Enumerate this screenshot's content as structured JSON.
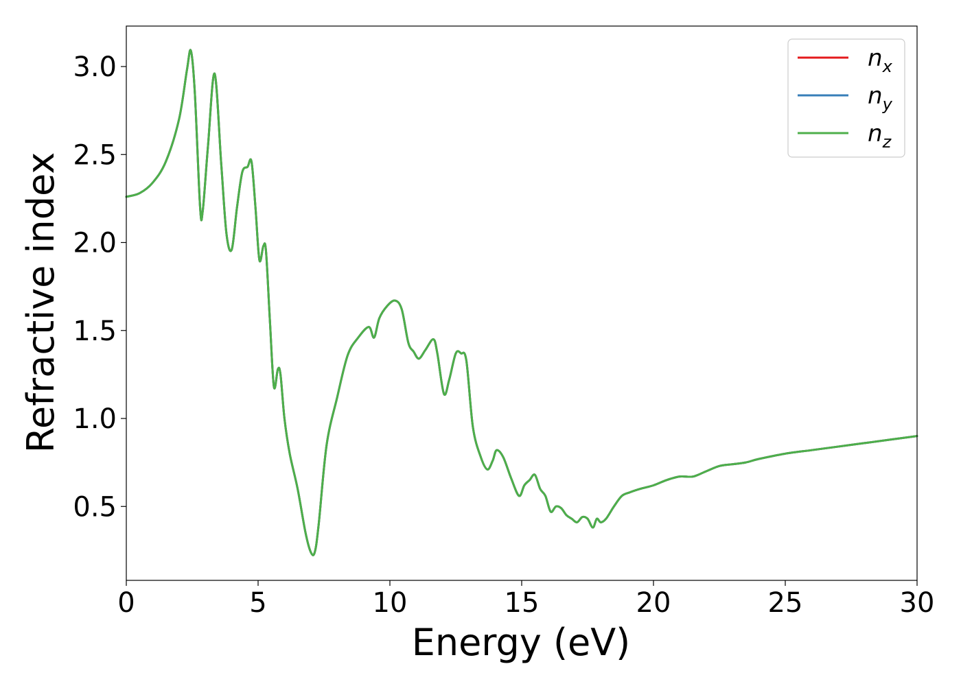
{
  "chart_data": {
    "type": "line",
    "xlabel": "Energy (eV)",
    "ylabel": "Refractive index",
    "xlim": [
      0,
      30
    ],
    "ylim": [
      0.08,
      3.23
    ],
    "x_ticks": [
      0,
      5,
      10,
      15,
      20,
      25,
      30
    ],
    "x_tick_labels": [
      "0",
      "5",
      "10",
      "15",
      "20",
      "25",
      "30"
    ],
    "y_ticks": [
      0.5,
      1.0,
      1.5,
      2.0,
      2.5,
      3.0
    ],
    "y_tick_labels": [
      "0.5",
      "1.0",
      "1.5",
      "2.0",
      "2.5",
      "3.0"
    ],
    "grid": false,
    "legend_position": "top-right",
    "x": [
      0,
      0.5,
      1.0,
      1.5,
      2.0,
      2.3,
      2.45,
      2.6,
      2.8,
      2.9,
      3.1,
      3.35,
      3.6,
      3.8,
      4.0,
      4.2,
      4.4,
      4.6,
      4.75,
      4.9,
      5.05,
      5.2,
      5.3,
      5.45,
      5.6,
      5.75,
      5.85,
      6.0,
      6.2,
      6.5,
      6.8,
      7.0,
      7.15,
      7.3,
      7.6,
      8.0,
      8.4,
      8.8,
      9.2,
      9.4,
      9.6,
      9.9,
      10.2,
      10.45,
      10.7,
      10.9,
      11.1,
      11.35,
      11.65,
      11.8,
      12.05,
      12.25,
      12.5,
      12.7,
      12.9,
      13.15,
      13.45,
      13.7,
      13.9,
      14.05,
      14.3,
      14.6,
      14.9,
      15.1,
      15.3,
      15.5,
      15.7,
      15.9,
      16.1,
      16.3,
      16.5,
      16.7,
      16.9,
      17.1,
      17.3,
      17.5,
      17.7,
      17.85,
      18.0,
      18.2,
      18.5,
      18.8,
      19.1,
      19.5,
      20.0,
      20.5,
      21.0,
      21.5,
      22.0,
      22.5,
      23.0,
      23.5,
      24.0,
      25.0,
      26.0,
      27.0,
      28.0,
      29.0,
      30.0
    ],
    "series": [
      {
        "name": "n_x",
        "color": "#e41a1c",
        "values": [
          2.26,
          2.28,
          2.34,
          2.46,
          2.7,
          2.98,
          3.09,
          2.85,
          2.2,
          2.18,
          2.55,
          2.96,
          2.45,
          2.05,
          1.96,
          2.2,
          2.4,
          2.43,
          2.46,
          2.2,
          1.9,
          1.98,
          1.95,
          1.55,
          1.18,
          1.28,
          1.25,
          1.0,
          0.8,
          0.6,
          0.35,
          0.24,
          0.24,
          0.4,
          0.85,
          1.12,
          1.36,
          1.46,
          1.52,
          1.46,
          1.57,
          1.64,
          1.67,
          1.62,
          1.43,
          1.38,
          1.34,
          1.39,
          1.45,
          1.37,
          1.14,
          1.22,
          1.37,
          1.37,
          1.33,
          0.95,
          0.78,
          0.71,
          0.76,
          0.82,
          0.78,
          0.66,
          0.56,
          0.62,
          0.65,
          0.68,
          0.6,
          0.56,
          0.47,
          0.5,
          0.49,
          0.45,
          0.43,
          0.41,
          0.44,
          0.43,
          0.38,
          0.43,
          0.41,
          0.43,
          0.5,
          0.56,
          0.58,
          0.6,
          0.62,
          0.65,
          0.67,
          0.67,
          0.7,
          0.73,
          0.74,
          0.75,
          0.77,
          0.8,
          0.82,
          0.84,
          0.86,
          0.88,
          0.9
        ]
      },
      {
        "name": "n_y",
        "color": "#377eb8",
        "values": [
          2.26,
          2.28,
          2.34,
          2.46,
          2.7,
          2.98,
          3.09,
          2.85,
          2.2,
          2.18,
          2.55,
          2.96,
          2.45,
          2.05,
          1.96,
          2.2,
          2.4,
          2.43,
          2.46,
          2.2,
          1.9,
          1.98,
          1.95,
          1.55,
          1.18,
          1.28,
          1.25,
          1.0,
          0.8,
          0.6,
          0.35,
          0.24,
          0.24,
          0.4,
          0.85,
          1.12,
          1.36,
          1.46,
          1.52,
          1.46,
          1.57,
          1.64,
          1.67,
          1.62,
          1.43,
          1.38,
          1.34,
          1.39,
          1.45,
          1.37,
          1.14,
          1.22,
          1.37,
          1.37,
          1.33,
          0.95,
          0.78,
          0.71,
          0.76,
          0.82,
          0.78,
          0.66,
          0.56,
          0.62,
          0.65,
          0.68,
          0.6,
          0.56,
          0.47,
          0.5,
          0.49,
          0.45,
          0.43,
          0.41,
          0.44,
          0.43,
          0.38,
          0.43,
          0.41,
          0.43,
          0.5,
          0.56,
          0.58,
          0.6,
          0.62,
          0.65,
          0.67,
          0.67,
          0.7,
          0.73,
          0.74,
          0.75,
          0.77,
          0.8,
          0.82,
          0.84,
          0.86,
          0.88,
          0.9
        ]
      },
      {
        "name": "n_z",
        "color": "#4daf4a",
        "values": [
          2.26,
          2.28,
          2.34,
          2.46,
          2.7,
          2.98,
          3.09,
          2.85,
          2.2,
          2.18,
          2.55,
          2.96,
          2.45,
          2.05,
          1.96,
          2.2,
          2.4,
          2.43,
          2.46,
          2.2,
          1.9,
          1.98,
          1.95,
          1.55,
          1.18,
          1.28,
          1.25,
          1.0,
          0.8,
          0.6,
          0.35,
          0.24,
          0.24,
          0.4,
          0.85,
          1.12,
          1.36,
          1.46,
          1.52,
          1.46,
          1.57,
          1.64,
          1.67,
          1.62,
          1.43,
          1.38,
          1.34,
          1.39,
          1.45,
          1.37,
          1.14,
          1.22,
          1.37,
          1.37,
          1.33,
          0.95,
          0.78,
          0.71,
          0.76,
          0.82,
          0.78,
          0.66,
          0.56,
          0.62,
          0.65,
          0.68,
          0.6,
          0.56,
          0.47,
          0.5,
          0.49,
          0.45,
          0.43,
          0.41,
          0.44,
          0.43,
          0.38,
          0.43,
          0.41,
          0.43,
          0.5,
          0.56,
          0.58,
          0.6,
          0.62,
          0.65,
          0.67,
          0.67,
          0.7,
          0.73,
          0.74,
          0.75,
          0.77,
          0.8,
          0.82,
          0.84,
          0.86,
          0.88,
          0.9
        ]
      }
    ],
    "legend": [
      {
        "base": "n",
        "sub": "x",
        "color": "#e41a1c"
      },
      {
        "base": "n",
        "sub": "y",
        "color": "#377eb8"
      },
      {
        "base": "n",
        "sub": "z",
        "color": "#4daf4a"
      }
    ]
  }
}
